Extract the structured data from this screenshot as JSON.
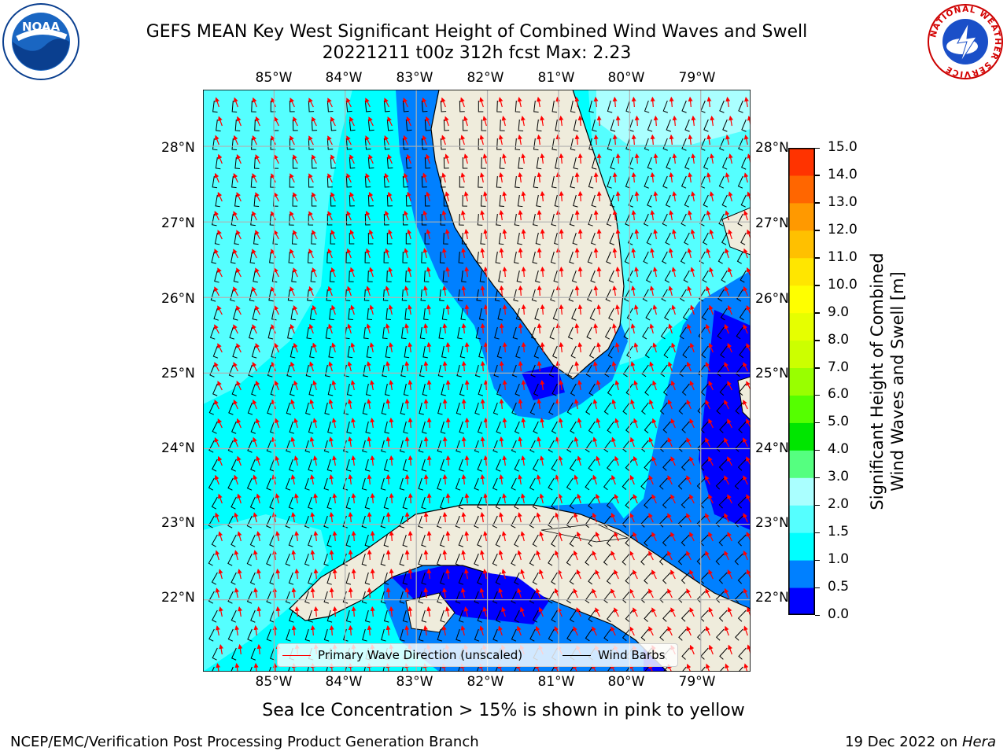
{
  "title": {
    "line1": "GEFS MEAN Key West Significant Height of Combined Wind Waves and Swell",
    "line2": "20221211 t00z 312h fcst   Max: 2.23"
  },
  "logos": {
    "left": "NOAA",
    "right_ring": "NATIONAL WEATHER SERVICE"
  },
  "map": {
    "lon_labels": [
      "85°W",
      "84°W",
      "83°W",
      "82°W",
      "81°W",
      "80°W",
      "79°W"
    ],
    "lat_labels": [
      "22°N",
      "23°N",
      "24°N",
      "25°N",
      "26°N",
      "27°N",
      "28°N"
    ],
    "lon_range": [
      -86,
      -78.3
    ],
    "lat_range": [
      21.05,
      28.75
    ],
    "colors": {
      "land": "#efecdc",
      "ocean_1_0_1_5": "#00ffff",
      "ocean_1_5_2_0": "#55ffff",
      "ocean_0_5_1_0": "#0080ff",
      "ocean_0_0_0_5": "#0000ff",
      "coast": "#000000",
      "grid": "#b0b0b0",
      "wave_arrow": "#ff0000",
      "barb": "#000000"
    },
    "grid": true
  },
  "legend": {
    "wave": "Primary Wave Direction (unscaled)",
    "barb": "Wind Barbs",
    "placement": "bottom-center"
  },
  "colorbar": {
    "label_line1": "Significant Height of Combined",
    "label_line2": "Wind Waves and Swell [m]",
    "ticks": [
      "0.0",
      "0.5",
      "1.0",
      "1.5",
      "2.0",
      "3.0",
      "4.0",
      "5.0",
      "6.0",
      "7.0",
      "8.0",
      "9.0",
      "10.0",
      "11.0",
      "12.0",
      "13.0",
      "14.0",
      "15.0"
    ],
    "colors": [
      "#0000ff",
      "#0080ff",
      "#00ffff",
      "#55ffff",
      "#aaffff",
      "#55ff80",
      "#00e600",
      "#55ff00",
      "#99ff00",
      "#ccff00",
      "#e6ff00",
      "#ffff00",
      "#ffe600",
      "#ffc000",
      "#ff9900",
      "#ff6600",
      "#ff3300",
      "#ff0000"
    ]
  },
  "caption": "Sea Ice Concentration > 15% is shown in pink to yellow",
  "footer": {
    "left": "NCEP/EMC/Verification Post Processing Product Generation Branch",
    "right_prefix": "19 Dec 2022 on ",
    "right_host": "Hera"
  }
}
